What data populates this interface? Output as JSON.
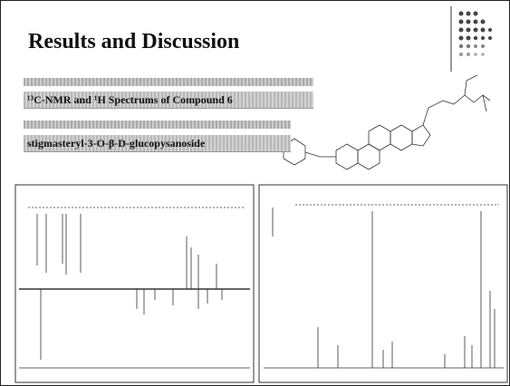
{
  "header": {
    "title": "Results and Discussion"
  },
  "labels": {
    "spectra": "¹³C-NMR and ¹H Spectrums of Compound 6",
    "compound": "stigmasteryl-3-O-β-D-glucopysanoside"
  }
}
